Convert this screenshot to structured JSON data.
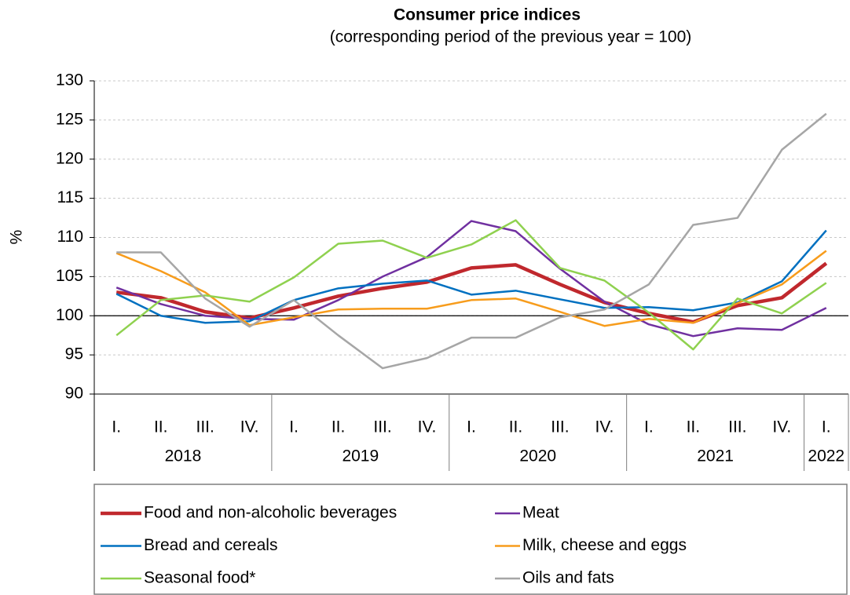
{
  "chart_data": {
    "type": "line",
    "title": "Consumer price indices",
    "subtitle": "(corresponding period of the previous year = 100)",
    "y_label": "%",
    "category_groups": [
      {
        "label": "2018",
        "categories": [
          "I.",
          "II.",
          "III.",
          "IV."
        ]
      },
      {
        "label": "2019",
        "categories": [
          "I.",
          "II.",
          "III.",
          "IV."
        ]
      },
      {
        "label": "2020",
        "categories": [
          "I.",
          "II.",
          "III.",
          "IV."
        ]
      },
      {
        "label": "2021",
        "categories": [
          "I.",
          "II.",
          "III.",
          "IV."
        ]
      },
      {
        "label": "2022",
        "categories": [
          "I."
        ]
      }
    ],
    "ylim": [
      90,
      130
    ],
    "yticks": [
      90,
      95,
      100,
      105,
      110,
      115,
      120,
      125,
      130
    ],
    "grid": true,
    "reference_line": 100,
    "legend": "bottom",
    "series": [
      {
        "name": "Food and non-alcoholic beverages",
        "color": "#c0282d",
        "values": [
          103,
          102.3,
          100.5,
          99.7,
          101,
          102.5,
          103.5,
          104.3,
          106.1,
          106.5,
          104,
          101.7,
          100.3,
          99.2,
          101.3,
          102.3,
          106.7
        ]
      },
      {
        "name": "Meat",
        "color": "#7030a0",
        "values": [
          103.6,
          101.5,
          100,
          99.6,
          99.5,
          102,
          105,
          107.5,
          112.1,
          110.8,
          106,
          101.8,
          98.9,
          97.4,
          98.4,
          98.2,
          101
        ]
      },
      {
        "name": "Bread and cereals",
        "color": "#0070c0",
        "values": [
          102.8,
          100,
          99.1,
          99.3,
          102,
          103.5,
          104.1,
          104.5,
          102.7,
          103.2,
          102.1,
          101,
          101.1,
          100.7,
          101.7,
          104.4,
          110.9
        ]
      },
      {
        "name": "Milk, cheese and eggs",
        "color": "#f79c1c",
        "values": [
          108,
          105.7,
          103,
          98.8,
          99.8,
          100.8,
          100.9,
          100.9,
          102,
          102.2,
          100.5,
          98.7,
          99.6,
          99.1,
          101.6,
          104,
          108.3
        ]
      },
      {
        "name": "Seasonal food*",
        "color": "#8fd14f",
        "values": [
          97.5,
          102,
          102.6,
          101.8,
          104.9,
          109.2,
          109.6,
          107.4,
          109.1,
          112.2,
          106.1,
          104.5,
          100.4,
          95.7,
          102.2,
          100.3,
          104.2
        ]
      },
      {
        "name": "Oils and fats",
        "color": "#a6a6a6",
        "values": [
          108.1,
          108.1,
          102.2,
          98.6,
          102,
          97.5,
          93.3,
          94.6,
          97.2,
          97.2,
          99.8,
          100.8,
          104,
          111.6,
          112.5,
          121.2,
          125.8
        ]
      }
    ]
  }
}
